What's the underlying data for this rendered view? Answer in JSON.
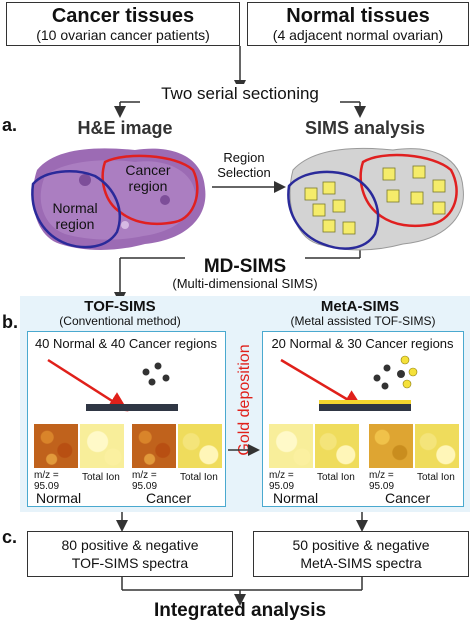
{
  "top_boxes": {
    "cancer_title": "Cancer tissues",
    "cancer_sub": "(10 ovarian cancer patients)",
    "normal_title": "Normal tissues",
    "normal_sub": "(4 adjacent normal ovarian)"
  },
  "sectioning": "Two serial sectioning",
  "section_a": {
    "letter": "a.",
    "he_title": "H&E image",
    "sims_title": "SIMS analysis",
    "region_selection": "Region\nSelection",
    "cancer_region": "Cancer\nregion",
    "normal_region": "Normal\nregion"
  },
  "md_sims": {
    "title": "MD-SIMS",
    "subtitle": "(Multi-dimensional SIMS)"
  },
  "section_b": {
    "letter": "b.",
    "tof_title": "TOF-SIMS",
    "tof_sub": "(Conventional method)",
    "meta_title": "MetA-SIMS",
    "meta_sub": "(Metal assisted TOF-SIMS)",
    "tof_regions": "40 Normal & 40 Cancer regions",
    "meta_regions": "20 Normal & 30 Cancer regions",
    "gold_deposition": "Gold deposition",
    "mz_label": "m/z =\n95.09",
    "total_ion": "Total Ion",
    "normal": "Normal",
    "cancer": "Cancer"
  },
  "section_c": {
    "letter": "c.",
    "tof_spectra": "80 positive & negative\nTOF-SIMS spectra",
    "meta_spectra": "50 positive & negative\nMetA-SIMS spectra"
  },
  "integrated": "Integrated analysis",
  "colors": {
    "red_arrow": "#e0201a",
    "cancer_outline": "#e02020",
    "normal_outline": "#2a2a9a",
    "panel_border": "#4aa9cf",
    "gold_text": "#e0201a"
  }
}
